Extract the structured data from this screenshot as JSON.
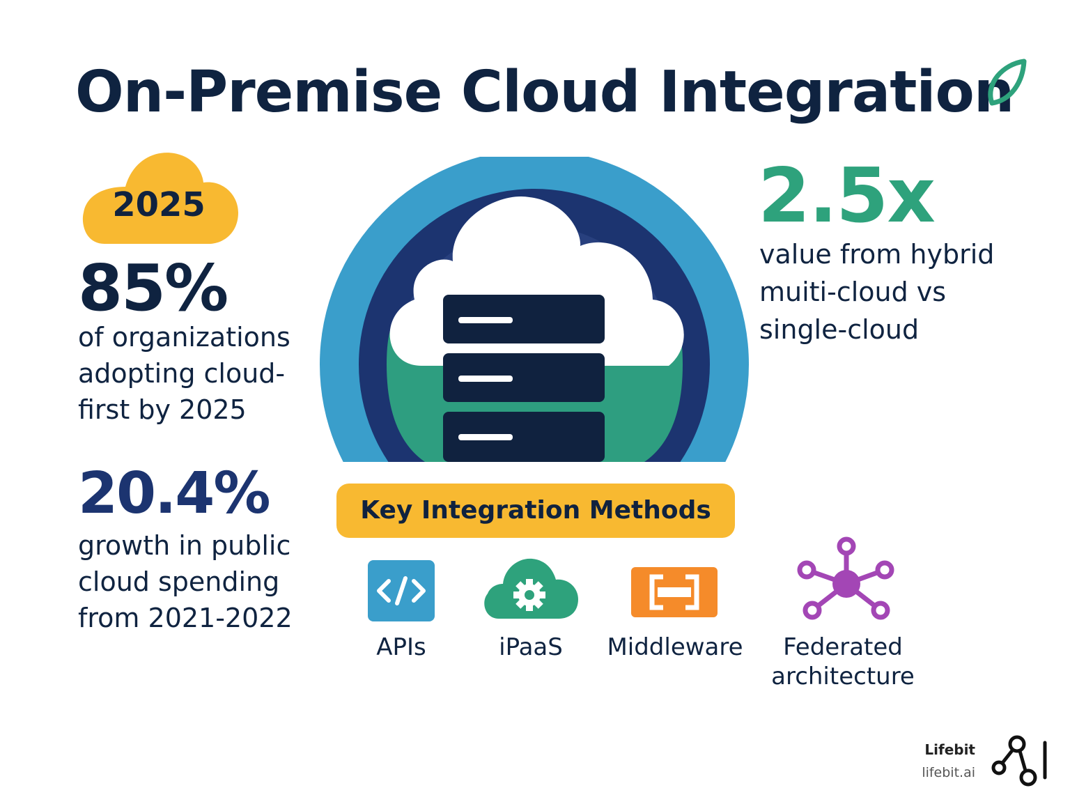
{
  "title": "On-Premise Cloud Integration",
  "badge": {
    "year": "2025"
  },
  "stats": [
    {
      "value": "85%",
      "description": "of organizations adopting cloud-first by 2025"
    },
    {
      "value": "20.4%",
      "description": "growth in public cloud spending from 2021-2022"
    },
    {
      "value": "2.5x",
      "description": "value from hybrid muiti-cloud vs single-cloud"
    }
  ],
  "methods": {
    "title": "Key Integration Methods",
    "items": [
      {
        "label": "APIs",
        "icon": "code-icon"
      },
      {
        "label": "iPaaS",
        "icon": "cloud-gear-icon"
      },
      {
        "label": "Middleware",
        "icon": "connector-icon"
      },
      {
        "label": "Federated architecture",
        "icon": "network-hub-icon"
      }
    ]
  },
  "brand": {
    "name": "Lifebit",
    "url": "lifebit.ai"
  },
  "colors": {
    "navy": "#0f2340",
    "green": "#2ea27c",
    "yellow": "#f8b931",
    "blue": "#3a9ecb",
    "purple": "#a346b5",
    "orange": "#f58b2a"
  }
}
